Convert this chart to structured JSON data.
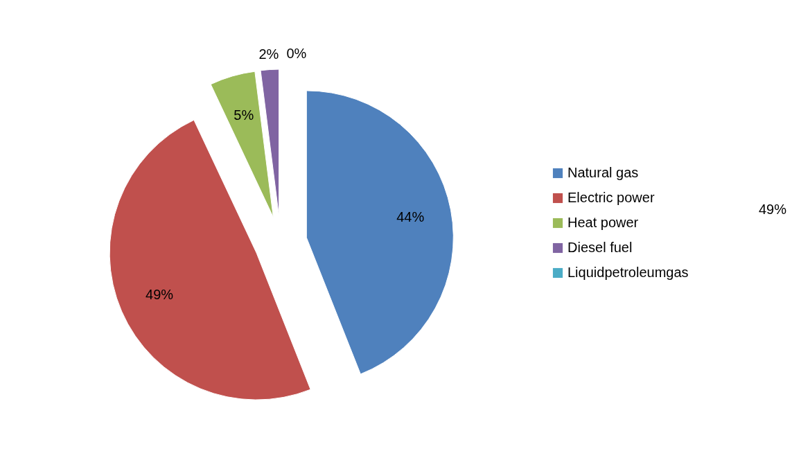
{
  "chart_data": {
    "type": "pie",
    "categories": [
      "Natural gas",
      "Electric power",
      "Heat power",
      "Diesel fuel",
      "Liquidpetroleumgas"
    ],
    "values": [
      44,
      49,
      5,
      2,
      0
    ],
    "colors": [
      "#4f81bd",
      "#c0504d",
      "#9bbb59",
      "#8064a2",
      "#4bacc6"
    ],
    "value_labels": [
      "44%",
      "49%",
      "5%",
      "2%",
      "0%"
    ],
    "legend": "right",
    "annotations": [
      "49%"
    ]
  }
}
